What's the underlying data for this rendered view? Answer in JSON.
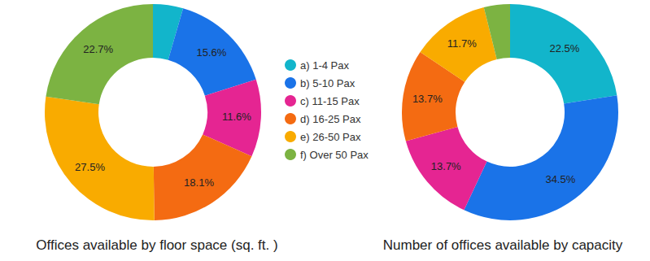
{
  "chart_data": [
    {
      "type": "pie",
      "title": "Offices available by floor space (sq. ft. )",
      "categories": [
        "a) 1-4 Pax",
        "b) 5-10 Pax",
        "c) 11-15 Pax",
        "d) 16-25 Pax",
        "e) 26-50 Pax",
        "f) Over 50 Pax"
      ],
      "values": [
        4.5,
        15.6,
        11.6,
        18.1,
        27.5,
        22.7
      ],
      "value_labels": [
        null,
        "15.6%",
        "11.6%",
        "18.1%",
        "27.5%",
        "22.7%"
      ],
      "colors": [
        "#12b5cb",
        "#1a73e8",
        "#e52592",
        "#f46b12",
        "#f9ab00",
        "#7cb342"
      ],
      "data_labels": true,
      "legend": "center"
    },
    {
      "type": "pie",
      "title": "Number of offices available by capacity",
      "categories": [
        "a) 1-4 Pax",
        "b) 5-10 Pax",
        "c) 11-15 Pax",
        "d) 16-25 Pax",
        "e) 26-50 Pax",
        "f) Over 50 Pax"
      ],
      "values": [
        22.5,
        34.5,
        13.7,
        13.7,
        11.7,
        3.9
      ],
      "value_labels": [
        "22.5%",
        "34.5%",
        "13.7%",
        "13.7%",
        "11.7%",
        null
      ],
      "colors": [
        "#12b5cb",
        "#1a73e8",
        "#e52592",
        "#f46b12",
        "#f9ab00",
        "#7cb342"
      ],
      "data_labels": true
    }
  ]
}
